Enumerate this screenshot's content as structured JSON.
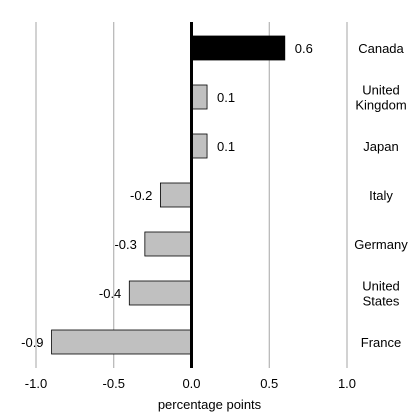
{
  "chart_data": {
    "type": "bar",
    "orientation": "horizontal",
    "categories": [
      "Canada",
      "United Kingdom",
      "Japan",
      "Italy",
      "Germany",
      "United States",
      "France"
    ],
    "category_label_lines": [
      [
        "Canada"
      ],
      [
        "United",
        "Kingdom"
      ],
      [
        "Japan"
      ],
      [
        "Italy"
      ],
      [
        "Germany"
      ],
      [
        "United",
        "States"
      ],
      [
        "France"
      ]
    ],
    "values": [
      0.6,
      0.1,
      0.1,
      -0.2,
      -0.3,
      -0.4,
      -0.9
    ],
    "value_labels": [
      "0.6",
      "0.1",
      "0.1",
      "-0.2",
      "-0.3",
      "-0.4",
      "-0.9"
    ],
    "highlight_category": "Canada",
    "colors": {
      "highlight": "#000000",
      "default": "#c0c0c0",
      "bar_outline": "#000000",
      "grid": "#a6a6a6",
      "zero_line": "#000000"
    },
    "xlim": [
      -1.0,
      1.0
    ],
    "xticks": [
      -1.0,
      -0.5,
      0.0,
      0.5,
      1.0
    ],
    "xtick_labels": [
      "-1.0",
      "-0.5",
      "0.0",
      "0.5",
      "1.0"
    ],
    "xlabel": "percentage points",
    "grid": "vertical",
    "legend": "none"
  }
}
